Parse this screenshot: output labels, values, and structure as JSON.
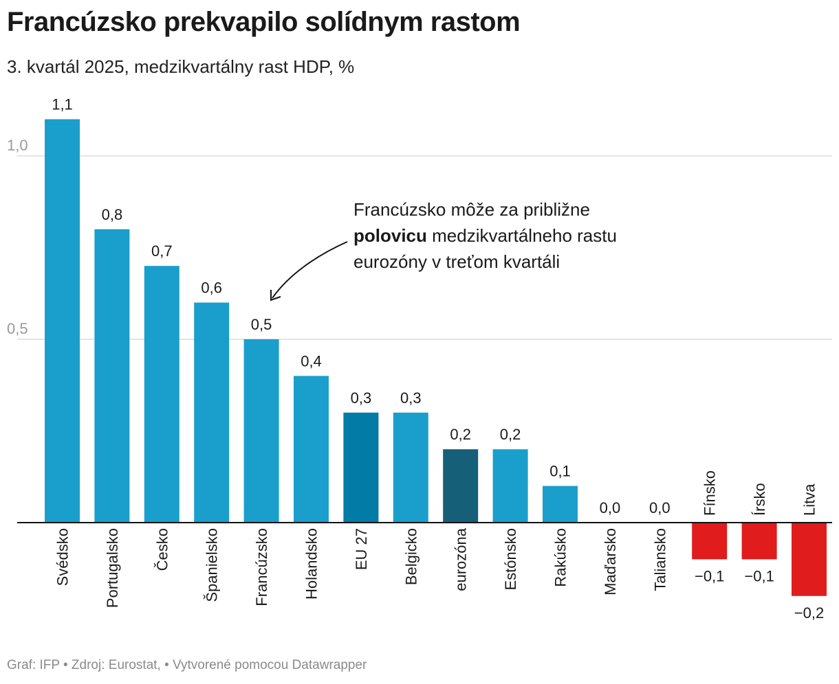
{
  "header": {
    "title": "Francúzsko prekvapilo solídnym rastom",
    "subtitle": "3. kvartál 2025, medzikvartálny rast HDP, %"
  },
  "annotation": {
    "line1": "Francúzsko môže za približne",
    "bold": "polovicu",
    "line2_rest": " medzikvartálneho rastu",
    "line3": "eurozóny v treťom kvartáli"
  },
  "footer": {
    "text": "Graf: IFP • Zdroj: Eurostat, • Vytvorené pomocou Datawrapper"
  },
  "colors": {
    "default": "#1a9fcc",
    "eu27": "#027ba6",
    "eurozone": "#155f78",
    "negative": "#e01c1c",
    "grid": "#dcdcdc",
    "axis_label": "#9a9a9a"
  },
  "chart_data": {
    "type": "bar",
    "title": "Francúzsko prekvapilo solídnym rastom",
    "subtitle": "3. kvartál 2025, medzikvartálny rast HDP, %",
    "categories": [
      "Svédsko",
      "Portugalsko",
      "Česko",
      "Španielsko",
      "Francúzsko",
      "Holandsko",
      "EU 27",
      "Belgicko",
      "eurozóna",
      "Estónsko",
      "Rakúsko",
      "Maďarsko",
      "Taliansko",
      "Fínsko",
      "Írsko",
      "Litva"
    ],
    "values": [
      1.1,
      0.8,
      0.7,
      0.6,
      0.5,
      0.4,
      0.3,
      0.3,
      0.2,
      0.2,
      0.1,
      0.0,
      0.0,
      -0.1,
      -0.1,
      -0.2
    ],
    "value_labels": [
      "1,1",
      "0,8",
      "0,7",
      "0,6",
      "0,5",
      "0,4",
      "0,3",
      "0,3",
      "0,2",
      "0,2",
      "0,1",
      "0,0",
      "0,0",
      "−0,1",
      "−0,1",
      "−0,2"
    ],
    "highlight": {
      "EU 27": "eu27",
      "eurozóna": "eurozone"
    },
    "yticks": [
      {
        "value": 0.5,
        "label": "0,5"
      },
      {
        "value": 1.0,
        "label": "1,0"
      }
    ],
    "ylim": [
      -0.2,
      1.1
    ],
    "grid": true,
    "xlabel": "",
    "ylabel": ""
  }
}
